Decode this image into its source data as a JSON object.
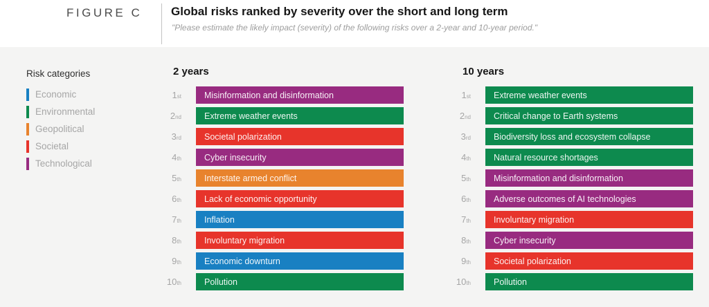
{
  "figure_label": "FIGURE C",
  "header": {
    "title": "Global risks ranked by severity over the short and long term",
    "subtitle": "\"Please estimate the likely impact (severity) of the following risks over a 2-year and 10-year period.\""
  },
  "legend": {
    "title": "Risk categories"
  },
  "category_colors": {
    "Economic": "#1980c2",
    "Environmental": "#0d8a4e",
    "Geopolitical": "#e8832d",
    "Societal": "#e7342b",
    "Technological": "#982b80"
  },
  "panel_background": "#f4f4f3",
  "chart_data": {
    "type": "table",
    "title": "Global risks ranked by severity over the short and long term",
    "subtitle": "\"Please estimate the likely impact (severity) of the following risks over a 2-year and 10-year period.\"",
    "legend_position": "left",
    "categories_legend": [
      "Economic",
      "Environmental",
      "Geopolitical",
      "Societal",
      "Technological"
    ],
    "columns": [
      {
        "heading": "2 years",
        "ranking": [
          {
            "rank": "1",
            "suffix": "st",
            "risk": "Misinformation and disinformation",
            "category": "Technological"
          },
          {
            "rank": "2",
            "suffix": "nd",
            "risk": "Extreme weather events",
            "category": "Environmental"
          },
          {
            "rank": "3",
            "suffix": "rd",
            "risk": "Societal polarization",
            "category": "Societal"
          },
          {
            "rank": "4",
            "suffix": "th",
            "risk": "Cyber insecurity",
            "category": "Technological"
          },
          {
            "rank": "5",
            "suffix": "th",
            "risk": "Interstate armed conflict",
            "category": "Geopolitical"
          },
          {
            "rank": "6",
            "suffix": "th",
            "risk": "Lack of economic opportunity",
            "category": "Societal"
          },
          {
            "rank": "7",
            "suffix": "th",
            "risk": "Inflation",
            "category": "Economic"
          },
          {
            "rank": "8",
            "suffix": "th",
            "risk": "Involuntary migration",
            "category": "Societal"
          },
          {
            "rank": "9",
            "suffix": "th",
            "risk": "Economic downturn",
            "category": "Economic"
          },
          {
            "rank": "10",
            "suffix": "th",
            "risk": "Pollution",
            "category": "Environmental"
          }
        ]
      },
      {
        "heading": "10 years",
        "ranking": [
          {
            "rank": "1",
            "suffix": "st",
            "risk": "Extreme weather events",
            "category": "Environmental"
          },
          {
            "rank": "2",
            "suffix": "nd",
            "risk": "Critical change to Earth systems",
            "category": "Environmental"
          },
          {
            "rank": "3",
            "suffix": "rd",
            "risk": "Biodiversity loss and ecosystem collapse",
            "category": "Environmental"
          },
          {
            "rank": "4",
            "suffix": "th",
            "risk": "Natural resource shortages",
            "category": "Environmental"
          },
          {
            "rank": "5",
            "suffix": "th",
            "risk": "Misinformation and disinformation",
            "category": "Technological"
          },
          {
            "rank": "6",
            "suffix": "th",
            "risk": "Adverse outcomes of AI technologies",
            "category": "Technological"
          },
          {
            "rank": "7",
            "suffix": "th",
            "risk": "Involuntary migration",
            "category": "Societal"
          },
          {
            "rank": "8",
            "suffix": "th",
            "risk": "Cyber insecurity",
            "category": "Technological"
          },
          {
            "rank": "9",
            "suffix": "th",
            "risk": "Societal polarization",
            "category": "Societal"
          },
          {
            "rank": "10",
            "suffix": "th",
            "risk": "Pollution",
            "category": "Environmental"
          }
        ]
      }
    ]
  }
}
